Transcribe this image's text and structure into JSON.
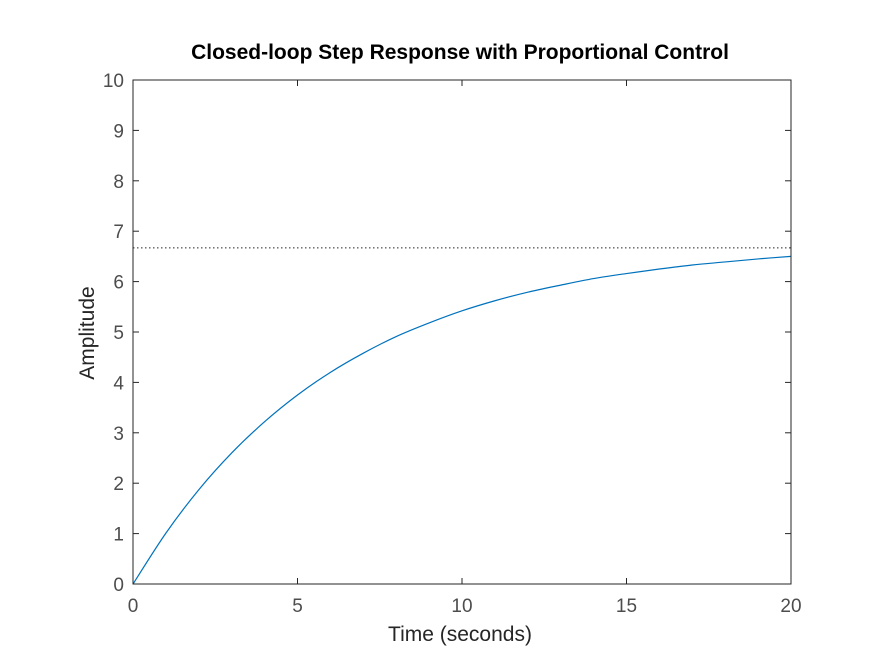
{
  "chart_data": {
    "type": "line",
    "title": "Closed-loop Step Response with Proportional Control",
    "xlabel": "Time (seconds)",
    "ylabel": "Amplitude",
    "xlim": [
      0,
      20
    ],
    "ylim": [
      0,
      10
    ],
    "xticks": [
      0,
      5,
      10,
      15,
      20
    ],
    "xtick_labels": [
      "0",
      "5",
      "10",
      "15",
      "20"
    ],
    "yticks": [
      0,
      1,
      2,
      3,
      4,
      5,
      6,
      7,
      8,
      9,
      10
    ],
    "ytick_labels": [
      "0",
      "1",
      "2",
      "3",
      "4",
      "5",
      "6",
      "7",
      "8",
      "9",
      "10"
    ],
    "grid": false,
    "legend": "none",
    "series": [
      {
        "color": "#0072bd",
        "style": "solid",
        "x": [
          0,
          1,
          2,
          3,
          4,
          5,
          6,
          7,
          8,
          9,
          10,
          11,
          12,
          13,
          14,
          15,
          16,
          17,
          18,
          19,
          20
        ],
        "y": [
          0,
          1.01,
          1.87,
          2.6,
          3.22,
          3.75,
          4.2,
          4.58,
          4.91,
          5.18,
          5.42,
          5.62,
          5.79,
          5.93,
          6.06,
          6.16,
          6.25,
          6.33,
          6.39,
          6.45,
          6.5
        ]
      },
      {
        "color": "#262626",
        "style": "dotted",
        "x": [
          0,
          20
        ],
        "y": [
          6.67,
          6.67
        ]
      }
    ]
  }
}
